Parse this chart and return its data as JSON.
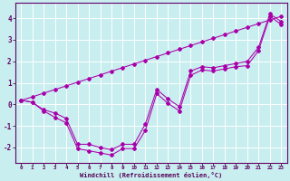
{
  "bg_color": "#c8eef0",
  "line_color": "#aa00aa",
  "grid_color": "#ffffff",
  "xlabel": "Windchill (Refroidissement éolien,°C)",
  "xlim": [
    -0.5,
    23.5
  ],
  "ylim": [
    -2.7,
    4.7
  ],
  "yticks": [
    -2,
    -1,
    0,
    1,
    2,
    3,
    4
  ],
  "xticks": [
    0,
    1,
    2,
    3,
    4,
    5,
    6,
    7,
    8,
    9,
    10,
    11,
    12,
    13,
    14,
    15,
    16,
    17,
    18,
    19,
    20,
    21,
    22,
    23
  ],
  "line1_y": [
    0.2,
    0.1,
    -0.3,
    -0.6,
    -0.85,
    -2.05,
    -2.15,
    -2.25,
    -2.35,
    -2.05,
    -2.05,
    -1.2,
    0.5,
    0.05,
    -0.3,
    1.35,
    1.6,
    1.55,
    1.65,
    1.75,
    1.8,
    2.5,
    4.1,
    3.7
  ],
  "line2_y": [
    0.2,
    0.1,
    -0.25,
    -0.4,
    -0.65,
    -1.85,
    -1.85,
    -2.0,
    -2.1,
    -1.85,
    -1.85,
    -0.9,
    0.7,
    0.25,
    -0.1,
    1.55,
    1.75,
    1.7,
    1.8,
    1.9,
    2.0,
    2.65,
    4.2,
    3.85
  ],
  "line3_y": [
    0.18,
    0.35,
    0.52,
    0.69,
    0.86,
    1.03,
    1.2,
    1.37,
    1.54,
    1.71,
    1.88,
    2.05,
    2.22,
    2.39,
    2.56,
    2.73,
    2.9,
    3.07,
    3.24,
    3.41,
    3.58,
    3.75,
    3.92,
    4.09
  ]
}
